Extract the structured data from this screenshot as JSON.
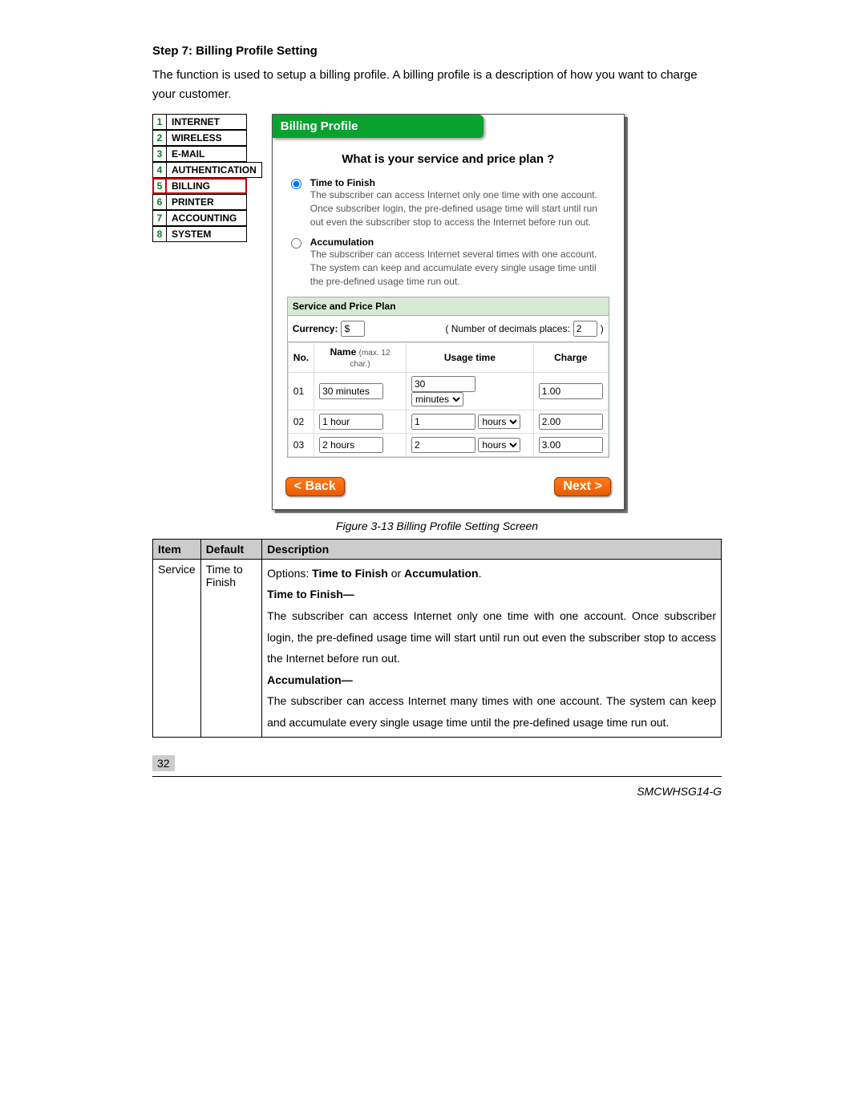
{
  "step": {
    "title": "Step 7: Billing Profile Setting",
    "desc": "The function is used to setup a billing profile. A billing profile is a description of how you want to charge your customer."
  },
  "nav": [
    {
      "n": "1",
      "label": "INTERNET",
      "selected": false
    },
    {
      "n": "2",
      "label": "WIRELESS",
      "selected": false
    },
    {
      "n": "3",
      "label": "E-MAIL",
      "selected": false
    },
    {
      "n": "4",
      "label": "AUTHENTICATION",
      "selected": false
    },
    {
      "n": "5",
      "label": "BILLING",
      "selected": true
    },
    {
      "n": "6",
      "label": "PRINTER",
      "selected": false
    },
    {
      "n": "7",
      "label": "ACCOUNTING",
      "selected": false
    },
    {
      "n": "8",
      "label": "SYSTEM",
      "selected": false
    }
  ],
  "panel": {
    "header": "Billing Profile",
    "question": "What is your service and price plan ?",
    "options": [
      {
        "title": "Time to Finish",
        "desc": "The subscriber can access Internet only one time with one account. Once subscriber login, the pre-defined usage time will start until run out even the subscriber stop to access the Internet before run out.",
        "checked": true
      },
      {
        "title": "Accumulation",
        "desc": "The subscriber can access Internet several times with one account. The system can keep and accumulate every single usage time until the pre-defined usage time run out.",
        "checked": false
      }
    ],
    "section_title": "Service and Price Plan",
    "currency_label": "Currency:",
    "currency_value": "$",
    "decimals_label_pre": "( Number of decimals places:",
    "decimals_value": "2",
    "decimals_label_post": ")",
    "cols": {
      "no": "No.",
      "name": "Name",
      "name_hint": "(max. 12 char.)",
      "usage": "Usage time",
      "charge": "Charge"
    },
    "rows": [
      {
        "no": "01",
        "name": "30 minutes",
        "val": "30",
        "unit": "minutes",
        "charge": "1.00"
      },
      {
        "no": "02",
        "name": "1 hour",
        "val": "1",
        "unit": "hours",
        "charge": "2.00"
      },
      {
        "no": "03",
        "name": "2 hours",
        "val": "2",
        "unit": "hours",
        "charge": "3.00"
      }
    ],
    "back": "< Back",
    "next": "Next >"
  },
  "figure_caption": "Figure 3-13 Billing Profile Setting Screen",
  "desc_table": {
    "headers": {
      "item": "Item",
      "default": "Default",
      "description": "Description"
    },
    "row": {
      "item": "Service",
      "default": "Time to Finish",
      "opts_line_pre": "Options: ",
      "opts_b1": "Time to Finish",
      "opts_mid": " or ",
      "opts_b2": "Accumulation",
      "opts_end": ".",
      "ttf_label": "Time to Finish—",
      "ttf_text": "The subscriber can access Internet only one time with one account. Once subscriber login, the pre-defined usage time will start until run out even the subscriber stop to access the Internet before run out.",
      "acc_label": "Accumulation—",
      "acc_text": "The subscriber can access Internet many times with one account. The system can keep and accumulate every single usage time until the pre-defined usage time run out."
    }
  },
  "page_number": "32",
  "footer": "SMCWHSG14-G"
}
